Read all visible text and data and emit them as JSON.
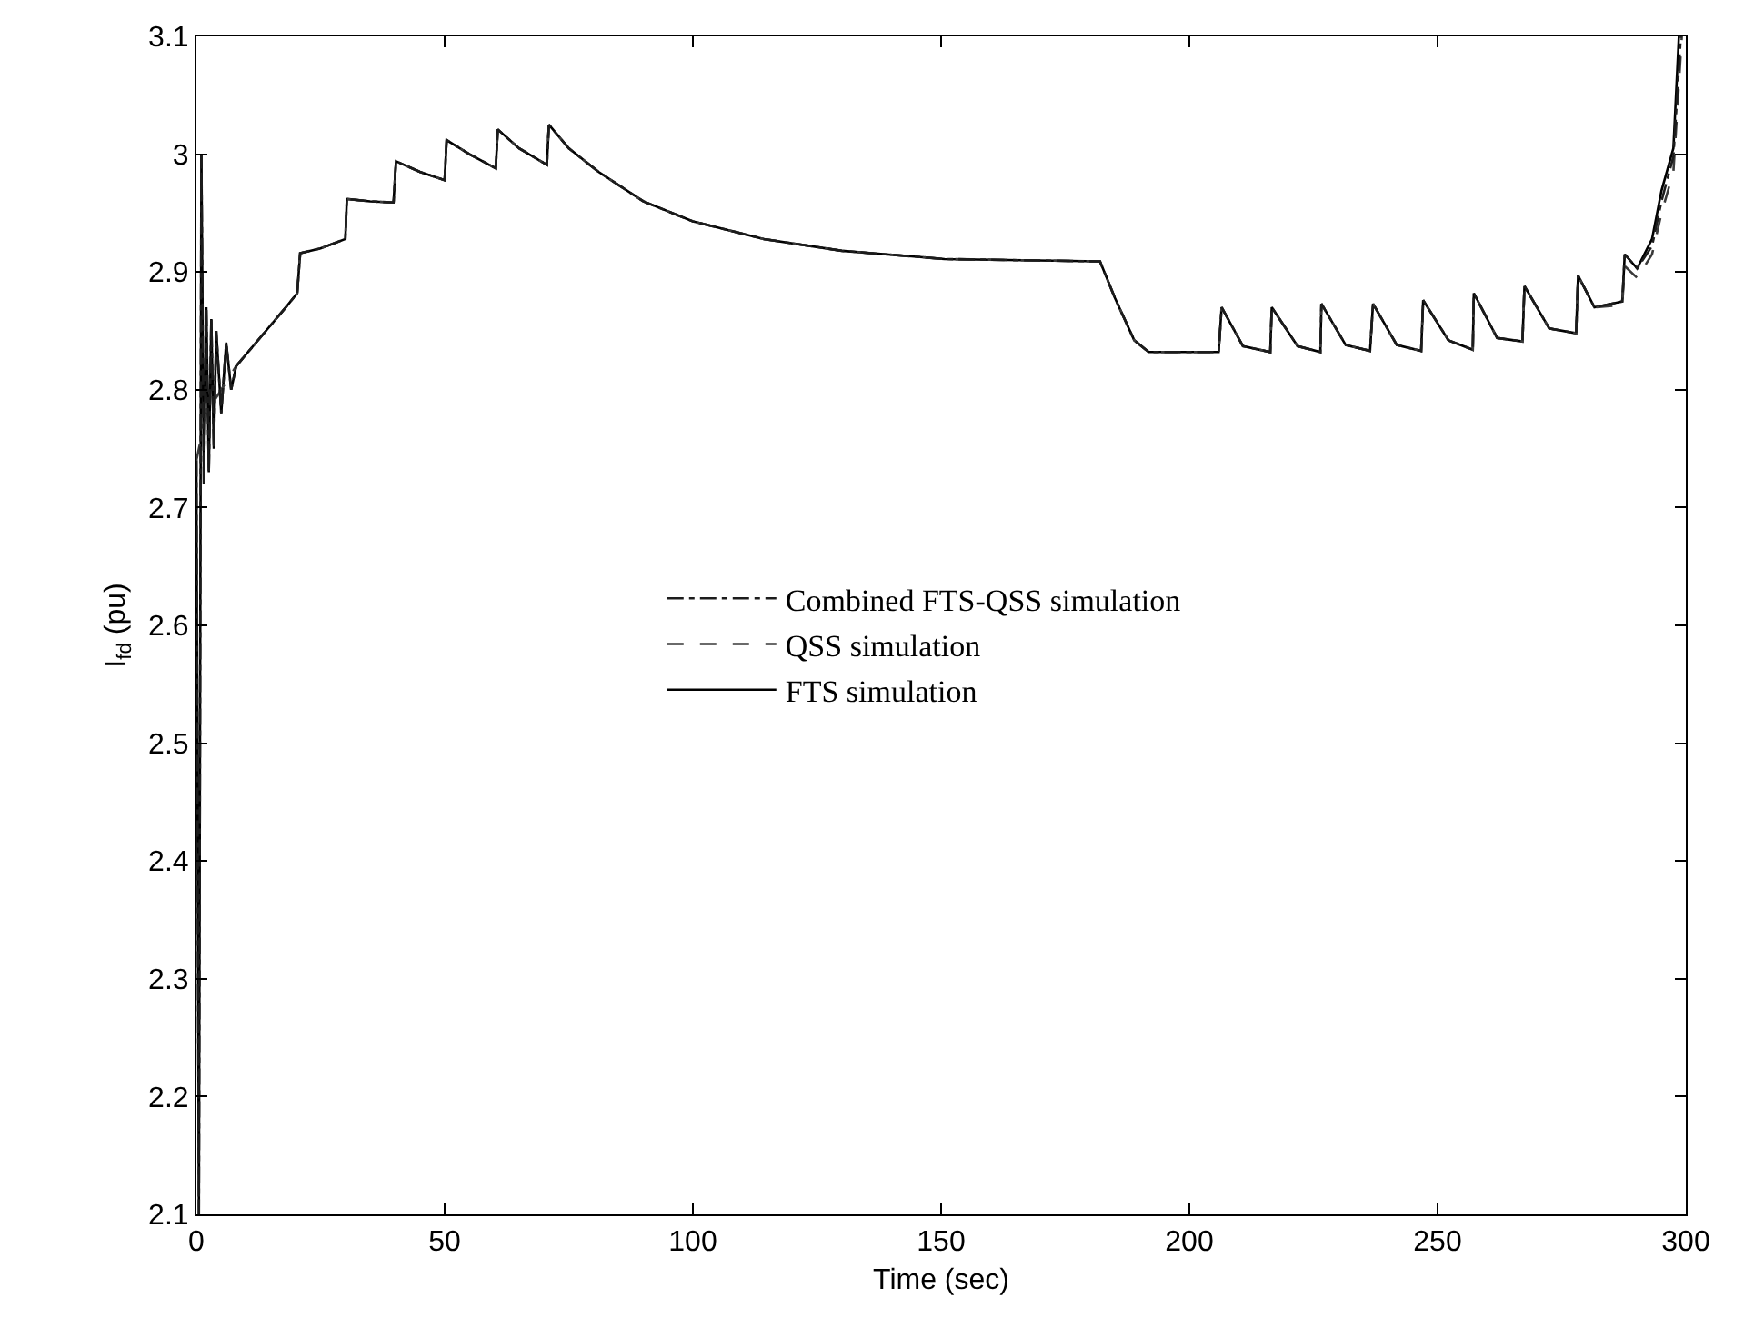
{
  "chart_data": {
    "type": "line",
    "xlabel": "Time (sec)",
    "ylabel": "I$_{fd}$ (pu)",
    "xlim": [
      0,
      300
    ],
    "xticks": [
      0,
      50,
      100,
      150,
      200,
      250,
      300
    ],
    "ylim": [
      2.1,
      3.1
    ],
    "yticks": [
      2.1,
      2.2,
      2.3,
      2.4,
      2.5,
      2.6,
      2.7,
      2.8,
      2.9,
      3,
      3.1
    ],
    "legend": "center",
    "series": [
      {
        "name": "Combined FTS-QSS simulation",
        "color": "#1c1c1c",
        "line_style": "dashdot",
        "x": [
          0,
          0.5,
          1,
          1.5,
          2,
          2.5,
          3,
          3.5,
          4,
          5,
          6,
          7,
          8,
          10,
          14,
          18,
          20.3,
          20.9,
          25,
          30,
          30.3,
          35,
          39.7,
          40.2,
          45,
          50,
          50.4,
          55,
          60.3,
          60.7,
          65,
          70.6,
          71,
          75,
          81,
          90,
          100,
          114.3,
          130,
          150.7,
          182,
          185,
          188.9,
          191.8,
          205.9,
          206.5,
          210.8,
          216.3,
          216.6,
          221.8,
          226.4,
          226.6,
          231.5,
          236.4,
          237,
          241.8,
          246.7,
          247.1,
          252.2,
          257.1,
          257.3,
          262,
          267.1,
          267.5,
          272.5,
          277.9,
          278.3,
          281.6,
          287.2,
          287.7,
          290.2,
          293.2,
          295.1,
          297.5,
          299
        ],
        "values": [
          2.74,
          2.1,
          3.0,
          2.72,
          2.87,
          2.73,
          2.86,
          2.75,
          2.85,
          2.78,
          2.84,
          2.8,
          2.82,
          2.83,
          2.85,
          2.87,
          2.882,
          2.916,
          2.92,
          2.928,
          2.962,
          2.96,
          2.959,
          2.994,
          2.985,
          2.978,
          3.012,
          3.0,
          2.988,
          3.021,
          3.005,
          2.991,
          3.025,
          3.005,
          2.985,
          2.96,
          2.943,
          2.928,
          2.918,
          2.911,
          2.909,
          2.878,
          2.842,
          2.832,
          2.832,
          2.87,
          2.837,
          2.832,
          2.87,
          2.837,
          2.832,
          2.873,
          2.838,
          2.833,
          2.873,
          2.838,
          2.833,
          2.876,
          2.842,
          2.834,
          2.882,
          2.844,
          2.841,
          2.888,
          2.852,
          2.848,
          2.897,
          2.87,
          2.875,
          2.915,
          2.903,
          2.922,
          2.96,
          2.998,
          3.1
        ]
      },
      {
        "name": "QSS simulation",
        "color": "#3a3a3a",
        "line_style": "dashed",
        "x": [
          0,
          2,
          5,
          8,
          10,
          14,
          18,
          20.3,
          20.9,
          25,
          30,
          30.3,
          35,
          39.7,
          40.2,
          45,
          50,
          50.4,
          55,
          60.3,
          60.7,
          65,
          70.6,
          71,
          75,
          81,
          90,
          100,
          114.3,
          130,
          150.7,
          182,
          185,
          188.9,
          191.8,
          205.9,
          206.5,
          210.8,
          216.3,
          216.6,
          221.8,
          226.4,
          226.6,
          231.5,
          236.4,
          237,
          241.8,
          246.7,
          247.1,
          252.2,
          257.1,
          257.3,
          262,
          267.1,
          267.5,
          272.5,
          277.9,
          278.3,
          281.6,
          287.2,
          287.7,
          290.2,
          293.2,
          295.1,
          297.5,
          299.2
        ],
        "values": [
          2.74,
          2.78,
          2.8,
          2.82,
          2.83,
          2.85,
          2.87,
          2.882,
          2.916,
          2.92,
          2.928,
          2.962,
          2.96,
          2.959,
          2.994,
          2.985,
          2.978,
          3.012,
          3.0,
          2.988,
          3.021,
          3.005,
          2.991,
          3.025,
          3.005,
          2.985,
          2.96,
          2.943,
          2.928,
          2.918,
          2.911,
          2.909,
          2.878,
          2.842,
          2.832,
          2.832,
          2.87,
          2.837,
          2.832,
          2.87,
          2.837,
          2.832,
          2.873,
          2.838,
          2.833,
          2.873,
          2.838,
          2.833,
          2.876,
          2.842,
          2.834,
          2.882,
          2.844,
          2.841,
          2.888,
          2.852,
          2.848,
          2.897,
          2.87,
          2.872,
          2.905,
          2.895,
          2.915,
          2.95,
          2.985,
          3.1
        ]
      },
      {
        "name": "FTS simulation",
        "color": "#000000",
        "line_style": "solid",
        "x": [
          0,
          0.5,
          1,
          1.5,
          2,
          2.5,
          3,
          3.5,
          4,
          5,
          6,
          7,
          8,
          10,
          14,
          18,
          20.3,
          20.9,
          25,
          30,
          30.3,
          35,
          39.7,
          40.2,
          45,
          50,
          50.4,
          55,
          60.3,
          60.7,
          65,
          70.6,
          71,
          75,
          81,
          90,
          100,
          114.3,
          130,
          150.7,
          182,
          185,
          188.9,
          191.8,
          205.9,
          206.5,
          210.8,
          216.3,
          216.6,
          221.8,
          226.4,
          226.6,
          231.5,
          236.4,
          237,
          241.8,
          246.7,
          247.1,
          252.2,
          257.1,
          257.3,
          262,
          267.1,
          267.5,
          272.5,
          277.9,
          278.3,
          281.6,
          287.2,
          287.7,
          290.2,
          293.2,
          295.1,
          297.5,
          298.6
        ],
        "values": [
          2.74,
          2.1,
          3.0,
          2.72,
          2.87,
          2.73,
          2.86,
          2.75,
          2.85,
          2.78,
          2.84,
          2.8,
          2.82,
          2.83,
          2.85,
          2.87,
          2.882,
          2.916,
          2.92,
          2.928,
          2.962,
          2.96,
          2.959,
          2.994,
          2.985,
          2.978,
          3.012,
          3.0,
          2.988,
          3.021,
          3.005,
          2.991,
          3.025,
          3.005,
          2.985,
          2.96,
          2.943,
          2.928,
          2.918,
          2.911,
          2.909,
          2.878,
          2.842,
          2.832,
          2.832,
          2.87,
          2.837,
          2.832,
          2.87,
          2.837,
          2.832,
          2.873,
          2.838,
          2.833,
          2.873,
          2.838,
          2.833,
          2.876,
          2.842,
          2.834,
          2.882,
          2.844,
          2.841,
          2.888,
          2.852,
          2.848,
          2.897,
          2.87,
          2.875,
          2.915,
          2.903,
          2.928,
          2.969,
          3.005,
          3.1
        ]
      }
    ]
  }
}
